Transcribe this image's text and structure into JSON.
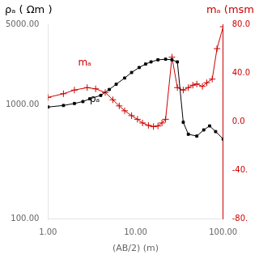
{
  "chart_data": {
    "type": "line",
    "log": true,
    "grid": false,
    "xlabel": "(AB/2) (m)",
    "ylabel": "ρₐ ( Ωm )",
    "y2label": "mₐ (msm",
    "xlim": [
      1.0,
      100.0
    ],
    "ylim": [
      100.0,
      5000.0
    ],
    "y2lim": [
      -80.0,
      80.0
    ],
    "xticks": [
      {
        "value": 1.0,
        "label": "1.00"
      },
      {
        "value": 10.0,
        "label": "10.00"
      },
      {
        "value": 100.0,
        "label": "100.00"
      }
    ],
    "yticks": [
      {
        "value": 100.0,
        "label": "100.00"
      },
      {
        "value": 1000.0,
        "label": "1000.00"
      },
      {
        "value": 5000.0,
        "label": "5000.00"
      }
    ],
    "y2ticks": [
      {
        "value": -80.0,
        "label": "-80."
      },
      {
        "value": -40.0,
        "label": "-40."
      },
      {
        "value": 0.0,
        "label": "0.0"
      },
      {
        "value": 40.0,
        "label": "40.0"
      },
      {
        "value": 80.0,
        "label": "80.0"
      }
    ],
    "series": [
      {
        "color": "#000000",
        "marker": "square",
        "x": [
          1.0,
          1.5,
          2.0,
          2.5,
          3.0,
          4.0,
          5.0,
          6.0,
          7.5,
          9.0,
          11.0,
          13.0,
          15.0,
          18.0,
          22.0,
          26.0,
          30.0,
          35.0,
          40.0,
          50.0,
          60.0,
          70.0,
          82.0,
          100.0
        ],
        "values": [
          950,
          980,
          1020,
          1060,
          1120,
          1200,
          1350,
          1500,
          1700,
          1900,
          2100,
          2250,
          2350,
          2450,
          2480,
          2450,
          2350,
          700,
          550,
          530,
          600,
          650,
          580,
          500
        ]
      },
      {
        "color": "#cc0000",
        "marker": "cross",
        "axis": "y2",
        "x": [
          1.0,
          1.5,
          2.0,
          2.8,
          3.5,
          4.5,
          5.5,
          6.5,
          7.5,
          9.0,
          10.5,
          12.0,
          14.0,
          16.0,
          18.0,
          20.0,
          22.0,
          26.0,
          30.0,
          35.0,
          40.0,
          45.0,
          50.0,
          58.0,
          65.0,
          75.0,
          85.0,
          100.0
        ],
        "values": [
          20.0,
          23.0,
          26.0,
          28.0,
          27.0,
          24.0,
          18.0,
          13.0,
          9.0,
          5.0,
          2.0,
          -1.0,
          -3.0,
          -4.0,
          -3.5,
          -1.0,
          2.0,
          53.0,
          28.0,
          26.0,
          28.0,
          30.0,
          31.0,
          29.0,
          32.0,
          35.0,
          60.0,
          78.0
        ]
      }
    ],
    "annotations": [
      {
        "text": "mₐ",
        "x": 2.2,
        "y": 2200,
        "color": "#cc0000"
      },
      {
        "text": "ρₐ",
        "x": 3.0,
        "y": 1050,
        "color": "#000000"
      }
    ]
  }
}
